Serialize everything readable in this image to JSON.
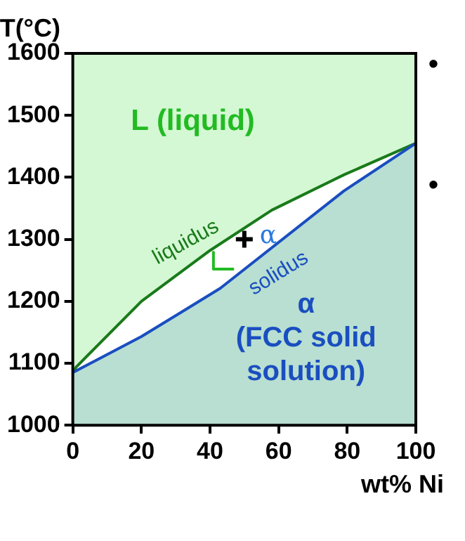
{
  "chart_data": {
    "type": "area",
    "xlabel": "wt% Ni",
    "ylabel": "T(°C)",
    "xlim": [
      0,
      100
    ],
    "ylim": [
      1000,
      1600
    ],
    "xticks": [
      0,
      20,
      40,
      60,
      80,
      100
    ],
    "yticks": [
      1000,
      1100,
      1200,
      1300,
      1400,
      1500,
      1600
    ],
    "legend": false,
    "series": [
      {
        "type": "line",
        "color": "#1a7a1a",
        "x": [
          0,
          1,
          20,
          40,
          58,
          79,
          100
        ],
        "values": [
          1085,
          1094,
          1200,
          1282,
          1347,
          1404,
          1455
        ]
      },
      {
        "color": "#1a4ec0",
        "x": [
          0,
          20,
          43,
          79,
          100
        ],
        "values": [
          1085,
          1143,
          1221,
          1378,
          1455
        ]
      },
      {
        "type": "line",
        "color": "#22bb22",
        "x": [
          41,
          41,
          47
        ],
        "values": [
          1279,
          1252,
          1252
        ]
      },
      {
        "type": "scatter",
        "color": "#000000",
        "marker": "cross",
        "x": [
          50
        ],
        "values": [
          1300
        ]
      }
    ],
    "annotations": [
      "L (liquid)",
      "liquidus",
      "α",
      "solidus",
      "α\n(FCC solid\nsolution)",
      "•",
      "•"
    ]
  }
}
